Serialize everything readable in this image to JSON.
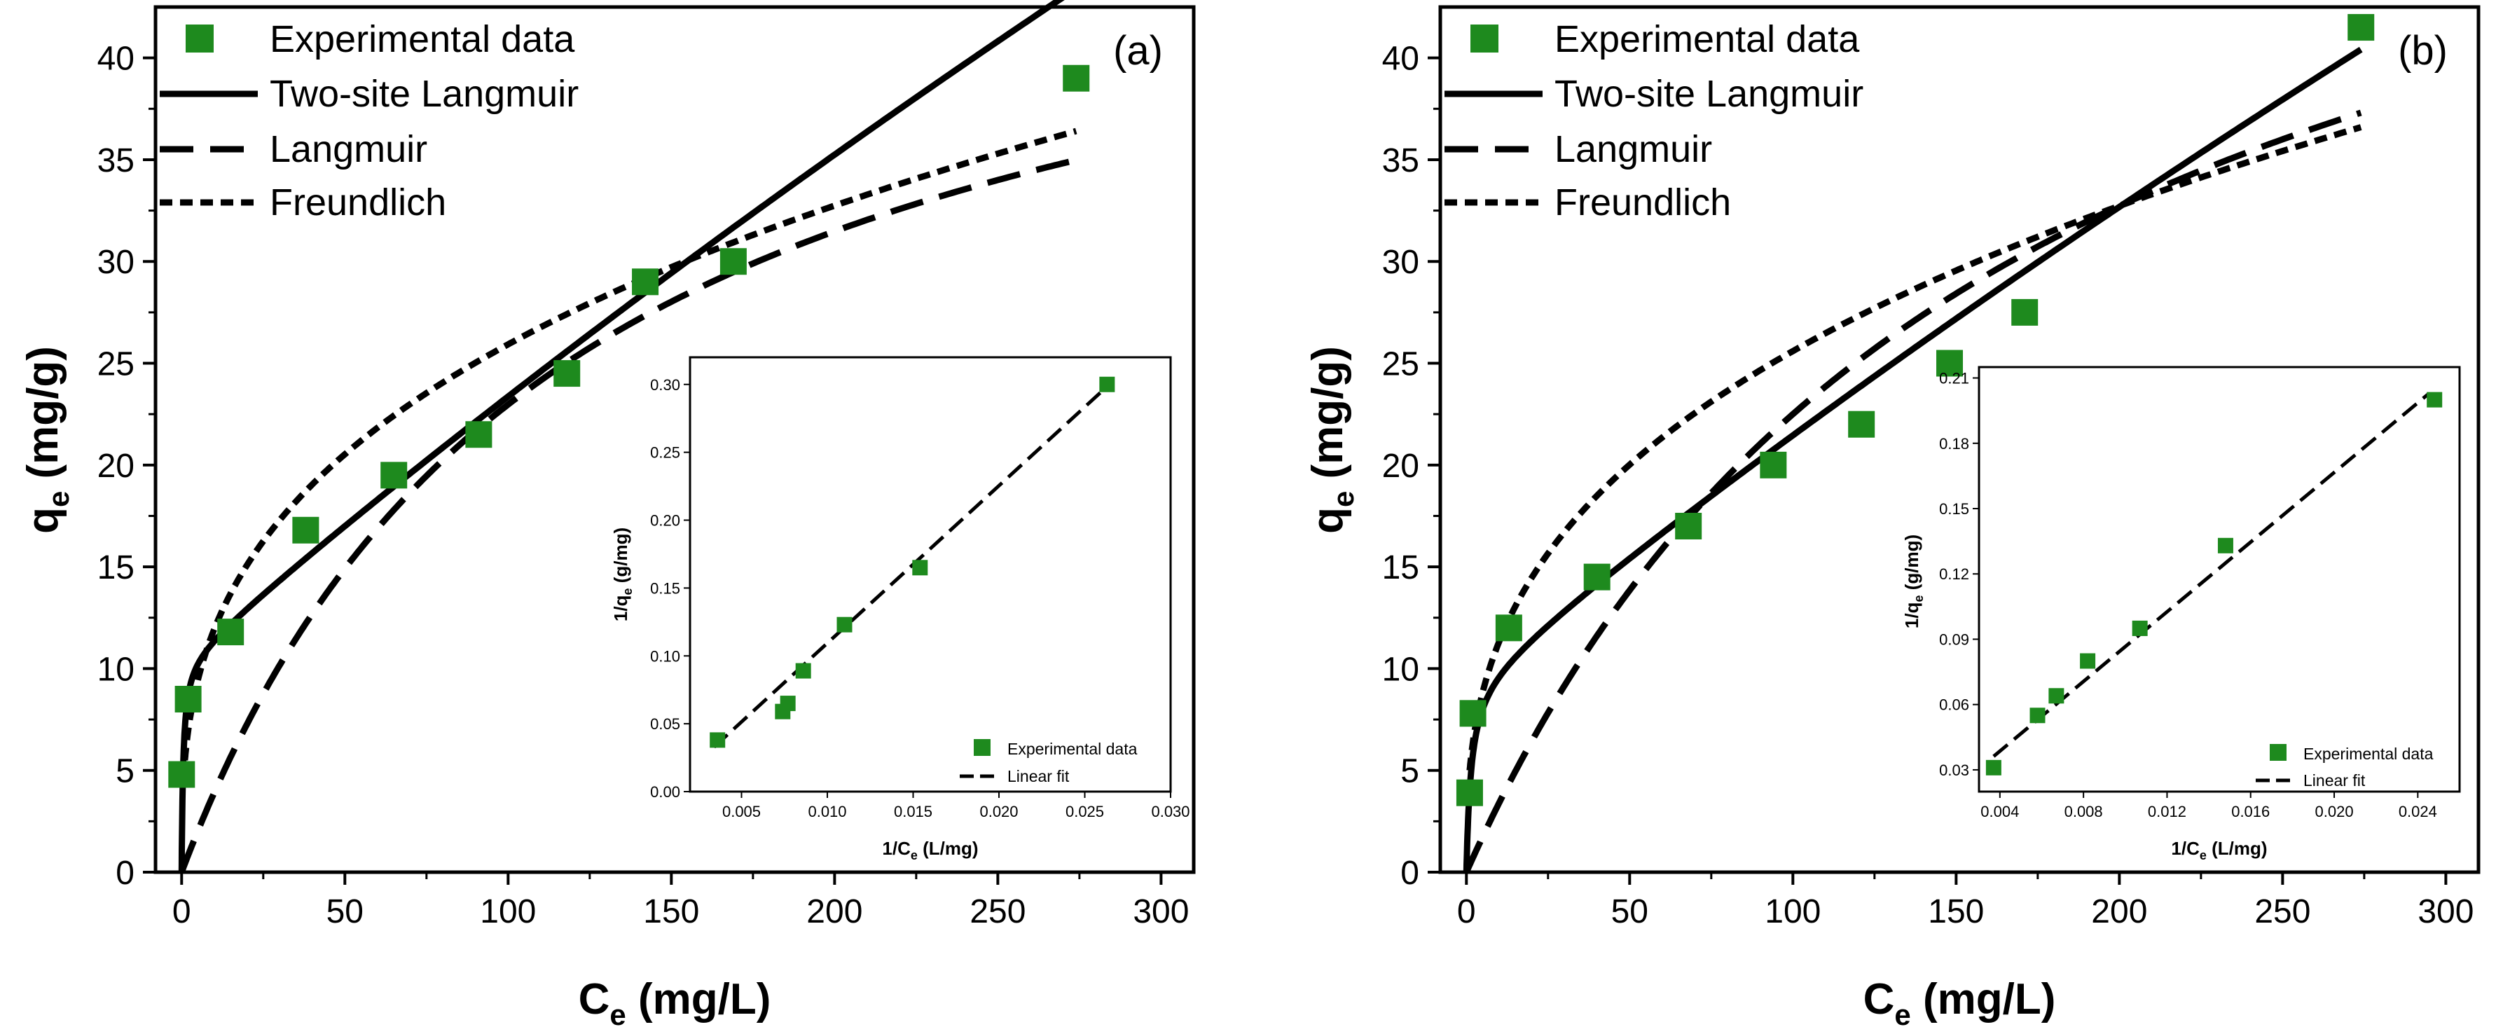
{
  "colors": {
    "marker": "#1e8a1e",
    "line": "#000000",
    "background": "#ffffff"
  },
  "charts": [
    {
      "panel": "(a)",
      "xlabel_main": "C",
      "xlabel_sub": "e",
      "xlabel_unit": " (mg/L)",
      "ylabel_main": "q",
      "ylabel_sub": "e",
      "ylabel_unit": " (mg/g)",
      "xticks": [
        "0",
        "50",
        "100",
        "150",
        "200",
        "250",
        "300"
      ],
      "yticks": [
        "0",
        "5",
        "10",
        "15",
        "20",
        "25",
        "30",
        "35",
        "40"
      ],
      "legend": [
        "Experimental data",
        "Two-site Langmuir",
        "Langmuir",
        "Freundlich"
      ],
      "inset": {
        "xlabel_main": "1/C",
        "xlabel_sub": "e",
        "xlabel_unit": " (L/mg)",
        "ylabel_main": "1/q",
        "ylabel_sub": "e",
        "ylabel_unit": " (g/mg)",
        "xticks": [
          "0.005",
          "0.010",
          "0.015",
          "0.020",
          "0.025",
          "0.030"
        ],
        "yticks": [
          "0.00",
          "0.05",
          "0.10",
          "0.15",
          "0.20",
          "0.25",
          "0.30"
        ],
        "legend": [
          "Experimental data",
          "Linear fit"
        ]
      }
    },
    {
      "panel": "(b)",
      "xlabel_main": "C",
      "xlabel_sub": "e",
      "xlabel_unit": " (mg/L)",
      "ylabel_main": "q",
      "ylabel_sub": "e",
      "ylabel_unit": " (mg/g)",
      "xticks": [
        "0",
        "50",
        "100",
        "150",
        "200",
        "250",
        "300"
      ],
      "yticks": [
        "0",
        "5",
        "10",
        "15",
        "20",
        "25",
        "30",
        "35",
        "40"
      ],
      "legend": [
        "Experimental data",
        "Two-site Langmuir",
        "Langmuir",
        "Freundlich"
      ],
      "inset": {
        "xlabel_main": "1/C",
        "xlabel_sub": "e",
        "xlabel_unit": " (L/mg)",
        "ylabel_main": "1/q",
        "ylabel_sub": "e",
        "ylabel_unit": " (g/mg)",
        "xticks": [
          "0.004",
          "0.008",
          "0.012",
          "0.016",
          "0.020",
          "0.024"
        ],
        "yticks": [
          "0.03",
          "0.06",
          "0.09",
          "0.12",
          "0.15",
          "0.18",
          "0.21"
        ],
        "legend": [
          "Experimental data",
          "Linear fit"
        ]
      }
    }
  ],
  "chart_data": [
    {
      "type": "scatter",
      "title": "(a)",
      "xlabel": "Ce (mg/L)",
      "ylabel": "qe (mg/g)",
      "xlim": [
        -8,
        310
      ],
      "ylim": [
        0,
        42.5
      ],
      "experimental": {
        "x": [
          0,
          2,
          15,
          38,
          65,
          91,
          118,
          142,
          169,
          274
        ],
        "y": [
          4.8,
          8.5,
          11.8,
          16.8,
          19.5,
          21.5,
          24.5,
          29,
          30,
          39
        ]
      },
      "models": [
        {
          "name": "Two-site Langmuir",
          "q1": 10.5,
          "K1": 2.0,
          "q2": 300,
          "K2": 0.00045
        },
        {
          "name": "Langmuir",
          "qm": 50,
          "K": 0.0085
        },
        {
          "name": "Freundlich",
          "Kf": 5.5,
          "n": 2.97,
          "xmin": 1
        }
      ],
      "inset": {
        "type": "scatter",
        "xlabel": "1/Ce (L/mg)",
        "ylabel": "1/qe (g/mg)",
        "xlim": [
          0.002,
          0.03
        ],
        "ylim": [
          0,
          0.32
        ],
        "x": [
          0.0036,
          0.0074,
          0.0077,
          0.0086,
          0.011,
          0.0154,
          0.0263
        ],
        "y": [
          0.038,
          0.059,
          0.065,
          0.089,
          0.123,
          0.165,
          0.3
        ],
        "fit": {
          "slope": 11.6,
          "intercept": -0.0066,
          "x0": 0.0034,
          "x1": 0.0263
        }
      }
    },
    {
      "type": "scatter",
      "title": "(b)",
      "xlabel": "Ce (mg/L)",
      "ylabel": "qe (mg/g)",
      "xlim": [
        -8,
        310
      ],
      "ylim": [
        0,
        42.5
      ],
      "experimental": {
        "x": [
          1,
          2,
          13,
          40,
          68,
          94,
          121,
          148,
          171,
          274
        ],
        "y": [
          3.9,
          7.8,
          12,
          14.5,
          17,
          20,
          22,
          25,
          27.5,
          41.5
        ]
      },
      "models": [
        {
          "name": "Two-site Langmuir",
          "q1": 9.5,
          "K1": 0.7,
          "q2": 300,
          "K2": 0.00042
        },
        {
          "name": "Langmuir",
          "qm": 60,
          "K": 0.006
        },
        {
          "name": "Freundlich",
          "Kf": 5.0,
          "n": 2.82,
          "xmin": 1
        }
      ],
      "inset": {
        "type": "scatter",
        "xlabel": "1/Ce (L/mg)",
        "ylabel": "1/qe (g/mg)",
        "xlim": [
          0.003,
          0.026
        ],
        "ylim": [
          0.02,
          0.215
        ],
        "x": [
          0.0037,
          0.0058,
          0.0067,
          0.0082,
          0.0107,
          0.0148,
          0.0248
        ],
        "y": [
          0.031,
          0.055,
          0.064,
          0.08,
          0.095,
          0.133,
          0.2
        ],
        "fit": {
          "slope": 8.0,
          "intercept": 0.0066,
          "x0": 0.0037,
          "x1": 0.0245
        }
      }
    }
  ]
}
